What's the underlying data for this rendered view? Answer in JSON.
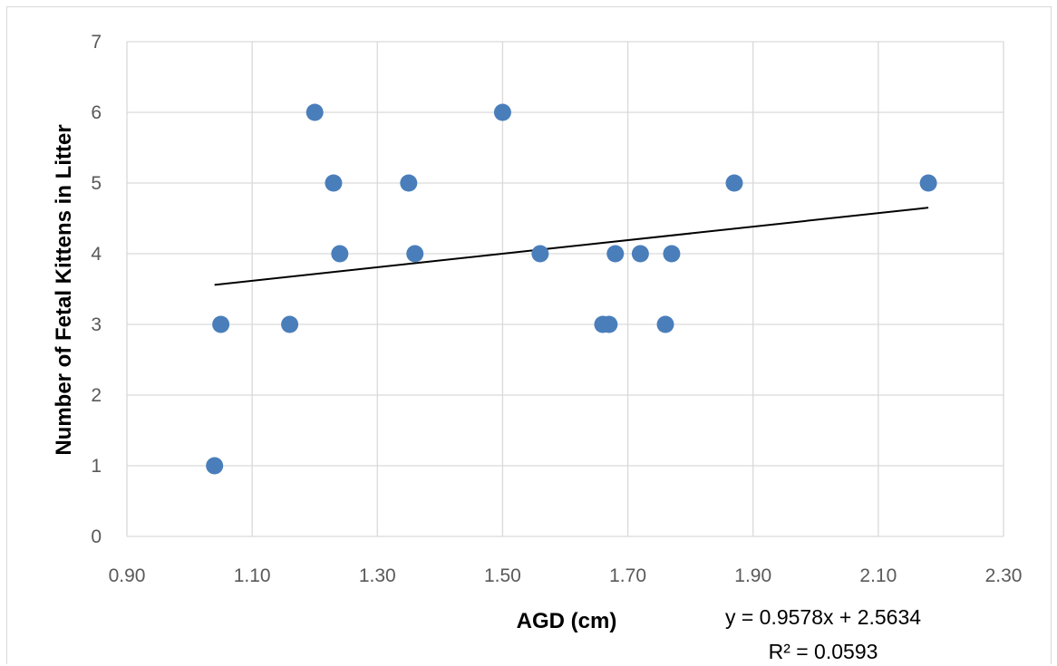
{
  "chart_data": {
    "type": "scatter",
    "title": "",
    "xlabel": "AGD (cm)",
    "ylabel": "Number of Fetal Kittens in Litter",
    "xlim": [
      0.9,
      2.3
    ],
    "ylim": [
      0,
      7
    ],
    "x_ticks": [
      "0.90",
      "1.10",
      "1.30",
      "1.50",
      "1.70",
      "1.90",
      "2.10",
      "2.30"
    ],
    "y_ticks": [
      "0",
      "1",
      "2",
      "3",
      "4",
      "5",
      "6",
      "7"
    ],
    "grid": true,
    "legend": "none",
    "marker_color": "#4a7ebb",
    "series": [
      {
        "points": [
          {
            "x": 1.04,
            "y": 1
          },
          {
            "x": 1.05,
            "y": 3
          },
          {
            "x": 1.16,
            "y": 3
          },
          {
            "x": 1.2,
            "y": 6
          },
          {
            "x": 1.23,
            "y": 5
          },
          {
            "x": 1.24,
            "y": 4
          },
          {
            "x": 1.35,
            "y": 5
          },
          {
            "x": 1.36,
            "y": 4
          },
          {
            "x": 1.5,
            "y": 6
          },
          {
            "x": 1.56,
            "y": 4
          },
          {
            "x": 1.66,
            "y": 3
          },
          {
            "x": 1.67,
            "y": 3
          },
          {
            "x": 1.68,
            "y": 4
          },
          {
            "x": 1.72,
            "y": 4
          },
          {
            "x": 1.76,
            "y": 3
          },
          {
            "x": 1.77,
            "y": 4
          },
          {
            "x": 1.87,
            "y": 5
          },
          {
            "x": 2.18,
            "y": 5
          }
        ]
      }
    ],
    "trendline": {
      "type": "linear",
      "slope": 0.9578,
      "intercept": 2.5634,
      "x_range": [
        1.04,
        2.18
      ],
      "color": "#000000",
      "equation": "y = 0.9578x + 2.5634",
      "r_squared": "R² = 0.0593"
    }
  }
}
